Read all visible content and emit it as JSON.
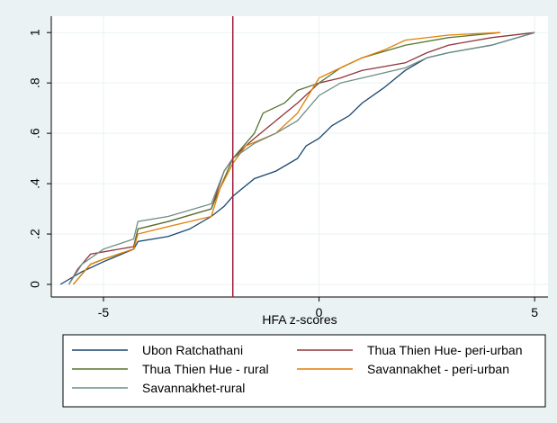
{
  "chart_data": {
    "type": "line",
    "xlabel": "HFA z-scores",
    "xlim": [
      -6.21,
      5.31
    ],
    "ylim": [
      -0.05,
      1.065
    ],
    "xticks": [
      -5,
      0,
      5
    ],
    "yticks": [
      0,
      {
        "value": 0.2,
        "label": ".2"
      },
      {
        "value": 0.4,
        "label": ".4"
      },
      {
        "value": 0.6,
        "label": ".6"
      },
      {
        "value": 0.8,
        "label": ".8"
      },
      1
    ],
    "grid": true,
    "xline": -2,
    "xline_color": "#a0203a",
    "series": [
      {
        "name": "Ubon Ratchathani",
        "color": "#1a476f",
        "x": [
          -6.0,
          -5.5,
          -5,
          -4.3,
          -4.2,
          -3.5,
          -3,
          -2.5,
          -2.2,
          -2,
          -1.5,
          -1,
          -0.5,
          -0.3,
          0,
          0.3,
          0.7,
          1,
          1.5,
          2,
          2.5,
          3,
          4,
          5
        ],
        "values": [
          0,
          0.05,
          0.09,
          0.14,
          0.17,
          0.19,
          0.22,
          0.27,
          0.31,
          0.35,
          0.42,
          0.45,
          0.5,
          0.55,
          0.58,
          0.63,
          0.67,
          0.72,
          0.78,
          0.85,
          0.9,
          0.92,
          0.95,
          1
        ]
      },
      {
        "name": "Thua Thien Hue- peri-urban",
        "color": "#90353b",
        "x": [
          -5.8,
          -5.6,
          -5.3,
          -4.3,
          -4.2,
          -3.5,
          -2.5,
          -2.2,
          -2,
          -1.7,
          -1.5,
          -1,
          -0.5,
          0,
          0.5,
          1,
          2,
          2.5,
          3,
          4,
          5
        ],
        "values": [
          0,
          0.06,
          0.12,
          0.15,
          0.22,
          0.25,
          0.3,
          0.45,
          0.5,
          0.55,
          0.58,
          0.65,
          0.72,
          0.8,
          0.82,
          0.85,
          0.88,
          0.92,
          0.95,
          0.98,
          1
        ]
      },
      {
        "name": "Thua Thien Hue - rural",
        "color": "#55752f",
        "x": [
          -5.7,
          -5.3,
          -5,
          -4.3,
          -4.2,
          -3.5,
          -2.5,
          -2.2,
          -2,
          -1.5,
          -1.3,
          -0.8,
          -0.5,
          0,
          0.5,
          1,
          2,
          3,
          4.2
        ],
        "values": [
          0,
          0.08,
          0.1,
          0.14,
          0.22,
          0.25,
          0.3,
          0.42,
          0.5,
          0.6,
          0.68,
          0.72,
          0.77,
          0.8,
          0.86,
          0.9,
          0.95,
          0.98,
          1
        ]
      },
      {
        "name": "Savannakhet - peri-urban",
        "color": "#e37e00",
        "x": [
          -5.7,
          -5.3,
          -5,
          -4.3,
          -4.2,
          -3.5,
          -2.5,
          -2.3,
          -2,
          -1.7,
          -1,
          -0.5,
          0,
          0.5,
          1,
          1.5,
          2,
          3,
          4.2
        ],
        "values": [
          0,
          0.08,
          0.1,
          0.14,
          0.2,
          0.23,
          0.27,
          0.38,
          0.48,
          0.55,
          0.6,
          0.68,
          0.82,
          0.86,
          0.9,
          0.93,
          0.97,
          0.99,
          1
        ]
      },
      {
        "name": "Savannakhet-rural",
        "color": "#6e8e84",
        "x": [
          -5.8,
          -5.5,
          -5,
          -4.3,
          -4.2,
          -3.5,
          -2.5,
          -2.2,
          -2,
          -1.5,
          -1,
          -0.5,
          0,
          0.5,
          1,
          2,
          2.5,
          3,
          4,
          5
        ],
        "values": [
          0,
          0.08,
          0.14,
          0.18,
          0.25,
          0.27,
          0.32,
          0.45,
          0.5,
          0.56,
          0.6,
          0.65,
          0.75,
          0.8,
          0.82,
          0.86,
          0.9,
          0.92,
          0.95,
          1
        ]
      }
    ]
  }
}
